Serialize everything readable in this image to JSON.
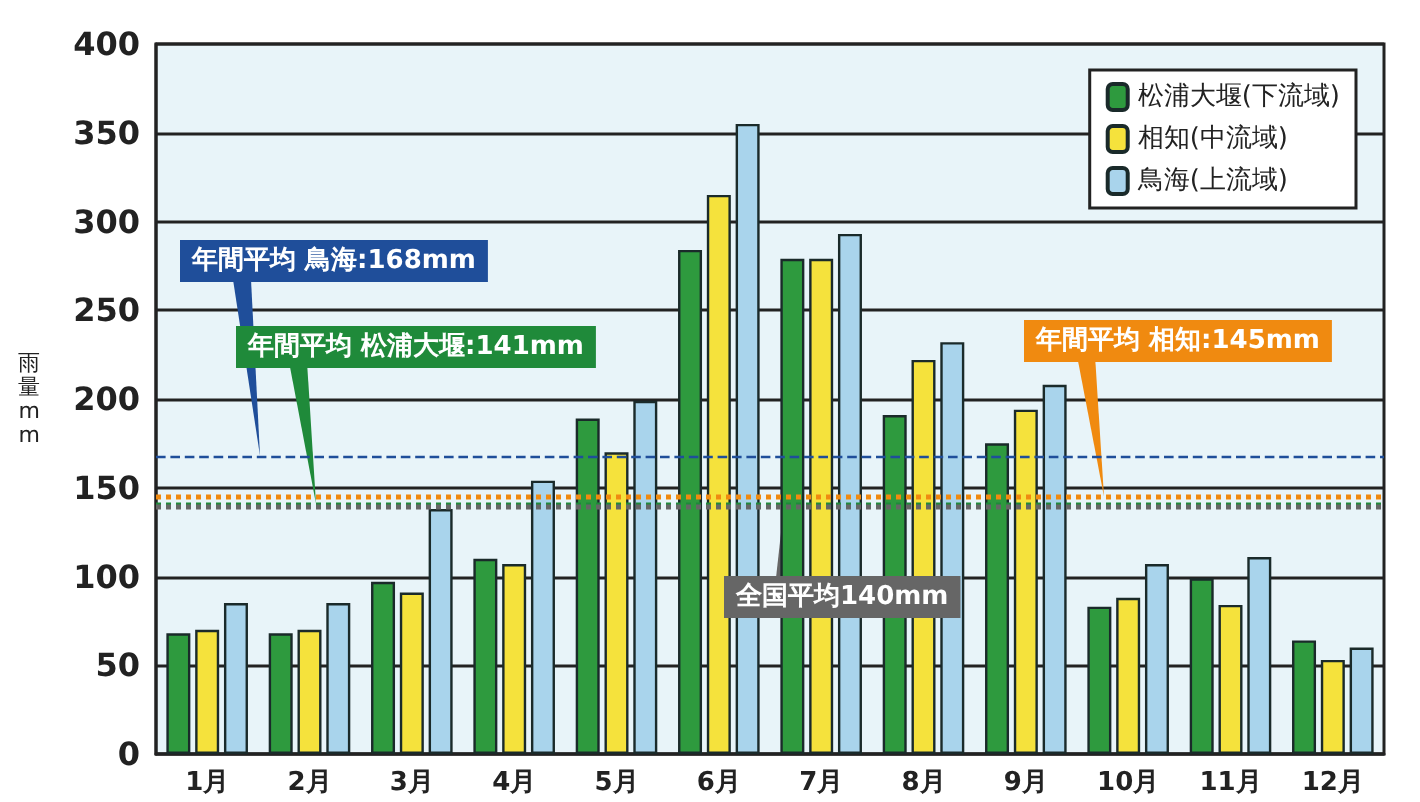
{
  "chart_data": {
    "type": "bar",
    "ylabel": "雨量mm",
    "categories": [
      "1月",
      "2月",
      "3月",
      "4月",
      "5月",
      "6月",
      "7月",
      "8月",
      "9月",
      "10月",
      "11月",
      "12月"
    ],
    "series": [
      {
        "name": "松浦大堰(下流域)",
        "color": "#2e9a3e",
        "values": [
          68,
          68,
          97,
          110,
          189,
          284,
          279,
          191,
          175,
          83,
          99,
          64
        ]
      },
      {
        "name": "相知(中流域)",
        "color": "#f5e23c",
        "values": [
          70,
          70,
          91,
          107,
          170,
          315,
          279,
          222,
          194,
          88,
          84,
          53
        ]
      },
      {
        "name": "鳥海(上流域)",
        "color": "#a9d4ec",
        "values": [
          85,
          85,
          138,
          154,
          199,
          355,
          293,
          232,
          208,
          107,
          111,
          60
        ]
      }
    ],
    "ylim": [
      0,
      400
    ],
    "yticks": [
      0,
      50,
      100,
      150,
      200,
      250,
      300,
      350,
      400
    ],
    "grid": "y",
    "legend": "top right",
    "ref_lines": [
      {
        "axis": "y",
        "value": 168,
        "label": "年間平均 鳥海:168mm",
        "color": "#1f4e9a",
        "line_style": "dashed"
      },
      {
        "axis": "y",
        "value": 141,
        "label": "年間平均 松浦大堰:141mm",
        "color": "#1f8a3a",
        "line_style": "dotted"
      },
      {
        "axis": "y",
        "value": 145,
        "label": "年間平均 相知:145mm",
        "color": "#f08a10",
        "line_style": "dotted"
      },
      {
        "axis": "y",
        "value": 140,
        "label": "全国平均140mm",
        "color": "#666666",
        "line_style": "dotted"
      }
    ]
  }
}
